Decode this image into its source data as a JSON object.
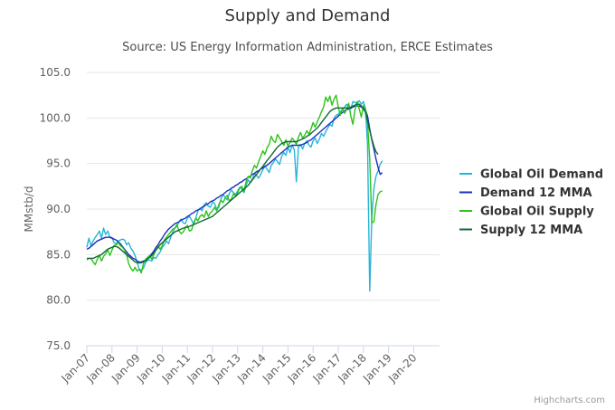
{
  "chart_data": {
    "type": "line",
    "title": "Supply and Demand",
    "subtitle": "Source: US Energy Information Administration, ERCE Estimates",
    "ylabel": "MMstb/d",
    "xlabel": "",
    "ylim": [
      75,
      106
    ],
    "yticks": [
      "75.0",
      "80.0",
      "85.0",
      "90.0",
      "95.0",
      "100.0",
      "105.0"
    ],
    "xticks": [
      "Jan-07",
      "Jan-08",
      "Jan-09",
      "Jan-10",
      "Jan-11",
      "Jan-12",
      "Jan-13",
      "Jan-14",
      "Jan-15",
      "Jan-16",
      "Jan-17",
      "Jan-18",
      "Jan-19",
      "Jan-20"
    ],
    "x_start": "Jan-07",
    "grid": "horizontal",
    "legend_position": "right",
    "series": [
      {
        "name": "Global Oil Demand",
        "color": "#27b4d8",
        "values": [
          85.8,
          86.8,
          86.0,
          86.5,
          86.9,
          87.2,
          87.6,
          86.8,
          87.9,
          87.2,
          87.6,
          86.9,
          86.9,
          86.3,
          86.2,
          86.5,
          86.6,
          86.7,
          86.6,
          86.1,
          86.3,
          85.7,
          85.4,
          84.9,
          84.2,
          83.4,
          83.3,
          83.5,
          84.1,
          84.4,
          84.4,
          84.3,
          84.7,
          84.6,
          85.0,
          85.3,
          85.8,
          86.1,
          86.5,
          86.2,
          86.9,
          87.5,
          87.9,
          88.1,
          88.6,
          88.9,
          88.5,
          88.4,
          89.0,
          89.2,
          88.8,
          88.3,
          89.0,
          89.8,
          90.1,
          89.8,
          90.5,
          90.7,
          90.3,
          90.2,
          90.8,
          90.6,
          90.0,
          90.2,
          91.1,
          91.6,
          91.3,
          91.0,
          91.7,
          92.1,
          91.8,
          91.6,
          92.0,
          92.4,
          92.2,
          91.8,
          92.6,
          93.2,
          92.9,
          93.3,
          93.9,
          93.7,
          93.4,
          93.8,
          94.3,
          94.7,
          94.4,
          94.0,
          94.8,
          95.1,
          95.5,
          95.2,
          94.9,
          95.8,
          96.2,
          95.9,
          96.8,
          96.2,
          97.0,
          96.5,
          93.0,
          96.8,
          97.1,
          96.6,
          97.2,
          97.5,
          97.0,
          96.8,
          97.5,
          97.8,
          97.2,
          97.7,
          98.3,
          98.0,
          98.5,
          98.9,
          99.3,
          99.1,
          100.0,
          100.3,
          100.4,
          100.7,
          100.9,
          101.2,
          101.5,
          101.3,
          101.0,
          101.8,
          101.7,
          101.6,
          101.9,
          101.5,
          101.8,
          101.0,
          97.0,
          81.0,
          89.0,
          92.2,
          93.6,
          94.2,
          94.9,
          95.3
        ]
      },
      {
        "name": "Demand 12 MMA",
        "color": "#1a2ec2",
        "values": [
          85.6,
          85.7,
          85.9,
          86.1,
          86.3,
          86.5,
          86.6,
          86.7,
          86.8,
          86.9,
          86.9,
          86.9,
          86.8,
          86.7,
          86.6,
          86.4,
          86.2,
          85.9,
          85.6,
          85.3,
          85.0,
          84.8,
          84.6,
          84.5,
          84.3,
          84.2,
          84.2,
          84.3,
          84.4,
          84.6,
          84.8,
          85.1,
          85.4,
          85.8,
          86.1,
          86.5,
          86.8,
          87.2,
          87.5,
          87.8,
          88.0,
          88.2,
          88.4,
          88.5,
          88.6,
          88.8,
          88.9,
          89.0,
          89.2,
          89.3,
          89.5,
          89.6,
          89.8,
          89.9,
          90.0,
          90.2,
          90.3,
          90.5,
          90.6,
          90.8,
          90.9,
          91.0,
          91.2,
          91.3,
          91.5,
          91.6,
          91.8,
          92.0,
          92.1,
          92.3,
          92.4,
          92.6,
          92.7,
          92.9,
          93.0,
          93.2,
          93.3,
          93.5,
          93.6,
          93.8,
          93.9,
          94.1,
          94.2,
          94.4,
          94.5,
          94.7,
          94.8,
          95.0,
          95.2,
          95.4,
          95.6,
          95.8,
          96.0,
          96.2,
          96.4,
          96.6,
          96.8,
          96.9,
          97.0,
          97.0,
          97.0,
          97.0,
          97.0,
          97.1,
          97.2,
          97.3,
          97.5,
          97.6,
          97.8,
          98.0,
          98.2,
          98.4,
          98.6,
          98.8,
          99.0,
          99.2,
          99.4,
          99.6,
          99.8,
          100.0,
          100.2,
          100.4,
          100.6,
          100.8,
          100.9,
          101.0,
          101.1,
          101.2,
          101.3,
          101.3,
          101.3,
          101.2,
          101.1,
          100.9,
          100.2,
          98.8,
          97.6,
          96.6,
          95.5,
          94.6,
          93.8,
          94.0
        ]
      },
      {
        "name": "Global Oil Supply",
        "color": "#2cc31a",
        "values": [
          84.4,
          84.6,
          84.6,
          84.2,
          83.9,
          84.5,
          84.9,
          84.3,
          84.8,
          85.1,
          85.5,
          84.9,
          85.5,
          86.0,
          86.1,
          86.3,
          86.0,
          85.8,
          85.5,
          85.0,
          84.0,
          83.5,
          83.2,
          83.6,
          83.2,
          83.4,
          83.0,
          84.0,
          84.5,
          84.7,
          84.9,
          84.5,
          85.0,
          85.5,
          85.9,
          85.6,
          86.0,
          86.6,
          86.9,
          87.2,
          87.5,
          87.8,
          87.9,
          88.3,
          87.6,
          87.3,
          87.5,
          87.9,
          88.2,
          87.6,
          87.7,
          88.5,
          89.0,
          88.7,
          89.2,
          89.4,
          89.1,
          89.8,
          89.2,
          89.6,
          89.8,
          90.2,
          89.8,
          90.5,
          91.0,
          90.7,
          91.2,
          91.5,
          90.9,
          91.1,
          91.7,
          91.4,
          91.8,
          92.3,
          92.5,
          92.0,
          93.0,
          93.6,
          93.4,
          94.2,
          94.8,
          94.5,
          95.2,
          95.8,
          96.4,
          96.0,
          96.7,
          97.1,
          98.0,
          97.5,
          97.3,
          98.2,
          97.8,
          97.4,
          97.0,
          97.6,
          96.9,
          97.3,
          97.8,
          97.5,
          97.1,
          97.9,
          98.4,
          97.8,
          98.1,
          98.6,
          98.2,
          98.8,
          99.5,
          99.0,
          99.6,
          100.1,
          100.7,
          101.2,
          102.3,
          101.8,
          102.4,
          101.4,
          102.1,
          102.5,
          101.2,
          100.3,
          101.1,
          100.5,
          101.0,
          101.6,
          100.2,
          99.3,
          100.9,
          101.8,
          101.0,
          100.1,
          101.4,
          101.0,
          99.5,
          95.5,
          88.5,
          88.6,
          90.5,
          91.6,
          91.9,
          92.0
        ]
      },
      {
        "name": "Supply 12 MMA",
        "color": "#0f6a35",
        "values": [
          84.6,
          84.6,
          84.6,
          84.6,
          84.7,
          84.8,
          84.9,
          85.0,
          85.2,
          85.4,
          85.6,
          85.7,
          85.8,
          85.9,
          85.9,
          85.8,
          85.6,
          85.4,
          85.2,
          85.0,
          84.8,
          84.6,
          84.4,
          84.2,
          84.1,
          84.1,
          84.1,
          84.2,
          84.3,
          84.5,
          84.7,
          84.9,
          85.2,
          85.5,
          85.8,
          86.1,
          86.3,
          86.5,
          86.7,
          86.9,
          87.1,
          87.3,
          87.5,
          87.6,
          87.7,
          87.8,
          87.9,
          88.0,
          88.0,
          88.1,
          88.2,
          88.3,
          88.4,
          88.5,
          88.6,
          88.7,
          88.8,
          88.9,
          89.0,
          89.1,
          89.2,
          89.4,
          89.6,
          89.8,
          90.0,
          90.2,
          90.4,
          90.6,
          90.8,
          91.0,
          91.2,
          91.4,
          91.6,
          91.8,
          92.0,
          92.2,
          92.4,
          92.6,
          92.9,
          93.2,
          93.5,
          93.8,
          94.1,
          94.4,
          94.7,
          95.0,
          95.3,
          95.6,
          95.9,
          96.2,
          96.5,
          96.8,
          97.0,
          97.2,
          97.3,
          97.4,
          97.4,
          97.4,
          97.4,
          97.4,
          97.4,
          97.5,
          97.6,
          97.7,
          97.8,
          98.0,
          98.1,
          98.3,
          98.5,
          98.7,
          98.9,
          99.2,
          99.5,
          99.8,
          100.1,
          100.4,
          100.7,
          100.9,
          101.0,
          101.1,
          101.1,
          101.1,
          101.1,
          101.1,
          101.1,
          101.1,
          101.2,
          101.3,
          101.4,
          101.5,
          101.5,
          101.3,
          101.0,
          100.6,
          99.7,
          98.6,
          97.7,
          96.9,
          96.3,
          96.0
        ]
      }
    ]
  },
  "credits": "Highcharts.com"
}
